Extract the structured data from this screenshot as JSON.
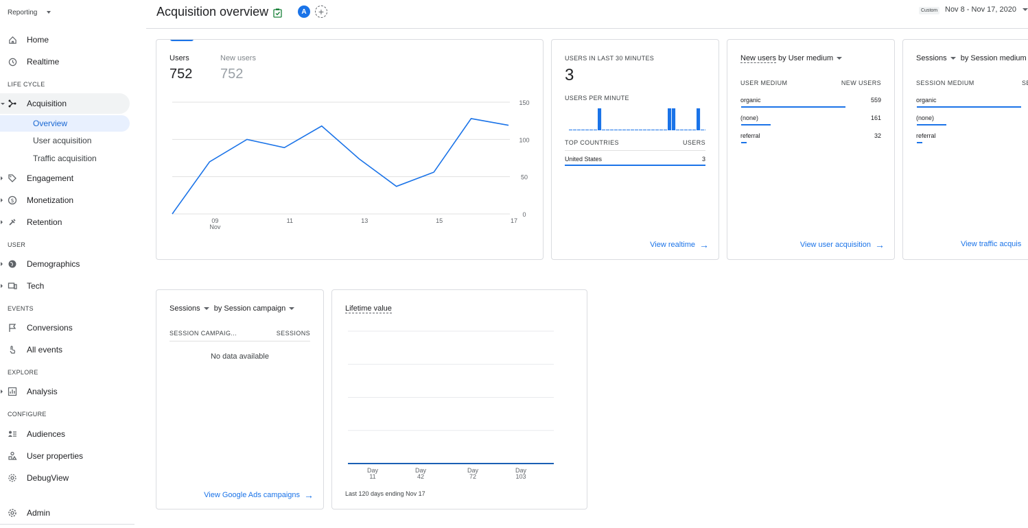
{
  "sidebar": {
    "header": "Reporting",
    "items": {
      "home": "Home",
      "realtime": "Realtime",
      "acquisition": "Acquisition",
      "engagement": "Engagement",
      "monetization": "Monetization",
      "retention": "Retention",
      "demographics": "Demographics",
      "tech": "Tech",
      "conversions": "Conversions",
      "all_events": "All events",
      "analysis": "Analysis",
      "audiences": "Audiences",
      "user_properties": "User properties",
      "debugview": "DebugView",
      "admin": "Admin"
    },
    "subitems": {
      "overview": "Overview",
      "user_acquisition": "User acquisition",
      "traffic_acquisition": "Traffic acquisition"
    },
    "sections": {
      "life_cycle": "LIFE CYCLE",
      "user": "USER",
      "events": "EVENTS",
      "explore": "EXPLORE",
      "configure": "CONFIGURE"
    }
  },
  "header": {
    "title": "Acquisition overview",
    "avatar_letter": "A",
    "add_comparison": "+",
    "date_chip": "Custom",
    "date_range": "Nov 8 - Nov 17, 2020"
  },
  "overview_card": {
    "users_label": "Users",
    "users_value": "752",
    "new_users_label": "New users",
    "new_users_value": "752",
    "chart_data": {
      "type": "line",
      "x": [
        "08",
        "09",
        "10",
        "11",
        "12",
        "13",
        "14",
        "15",
        "16",
        "17"
      ],
      "x_tick_labels": [
        "09",
        "11",
        "13",
        "15",
        "17"
      ],
      "x_sub_label": "Nov",
      "y_ticks": [
        "150",
        "100",
        "50",
        "0"
      ],
      "ylim": [
        0,
        150
      ],
      "series": [
        {
          "values": [
            0,
            70,
            100,
            89,
            118,
            74,
            37,
            56,
            128,
            119
          ]
        }
      ],
      "grid": true,
      "color": "#1a73e8"
    }
  },
  "realtime_card": {
    "title": "USERS IN LAST 30 MINUTES",
    "value": "3",
    "per_minute_label": "USERS PER MINUTE",
    "per_minute_values": [
      0,
      0,
      0,
      0,
      0,
      0,
      0,
      1,
      0,
      0,
      0,
      0,
      0,
      0,
      0,
      0,
      0,
      0,
      0,
      0,
      0,
      0,
      0,
      0,
      1,
      1,
      0,
      0,
      0,
      0,
      0,
      1,
      0,
      0
    ],
    "countries_header": "TOP COUNTRIES",
    "users_header": "USERS",
    "rows": [
      {
        "label": "United States",
        "value": "3"
      }
    ],
    "link": "View realtime"
  },
  "user_medium_card": {
    "title_metric": "New users",
    "title_dim": "by User medium",
    "col1": "USER MEDIUM",
    "col2": "NEW USERS",
    "rows": [
      {
        "label": "organic",
        "value": "559",
        "share": 0.74
      },
      {
        "label": "(none)",
        "value": "161",
        "share": 0.21
      },
      {
        "label": "referral",
        "value": "32",
        "share": 0.04
      }
    ],
    "link": "View user acquisition"
  },
  "session_medium_card": {
    "title_metric": "Sessions",
    "title_dim": "by Session medium",
    "col1": "SESSION MEDIUM",
    "col2": "SE",
    "rows": [
      {
        "label": "organic",
        "share": 0.74
      },
      {
        "label": "(none)",
        "share": 0.21
      },
      {
        "label": "referral",
        "share": 0.04
      }
    ],
    "link": "View traffic acquis"
  },
  "campaign_card": {
    "title_metric": "Sessions",
    "title_dim": "by Session campaign",
    "col1": "SESSION CAMPAIG...",
    "col2": "SESSIONS",
    "empty": "No data available",
    "link": "View Google Ads campaigns"
  },
  "ltv_card": {
    "title": "Lifetime value",
    "footer": "Last 120 days ending Nov 17",
    "chart_data": {
      "type": "line",
      "x_tick_labels": [
        {
          "top": "Day",
          "bottom": "11"
        },
        {
          "top": "Day",
          "bottom": "42"
        },
        {
          "top": "Day",
          "bottom": "72"
        },
        {
          "top": "Day",
          "bottom": "103"
        }
      ],
      "series": [
        {
          "values": [
            0,
            0,
            0,
            0
          ]
        }
      ],
      "grid": true,
      "color": "#1a73e8"
    }
  }
}
